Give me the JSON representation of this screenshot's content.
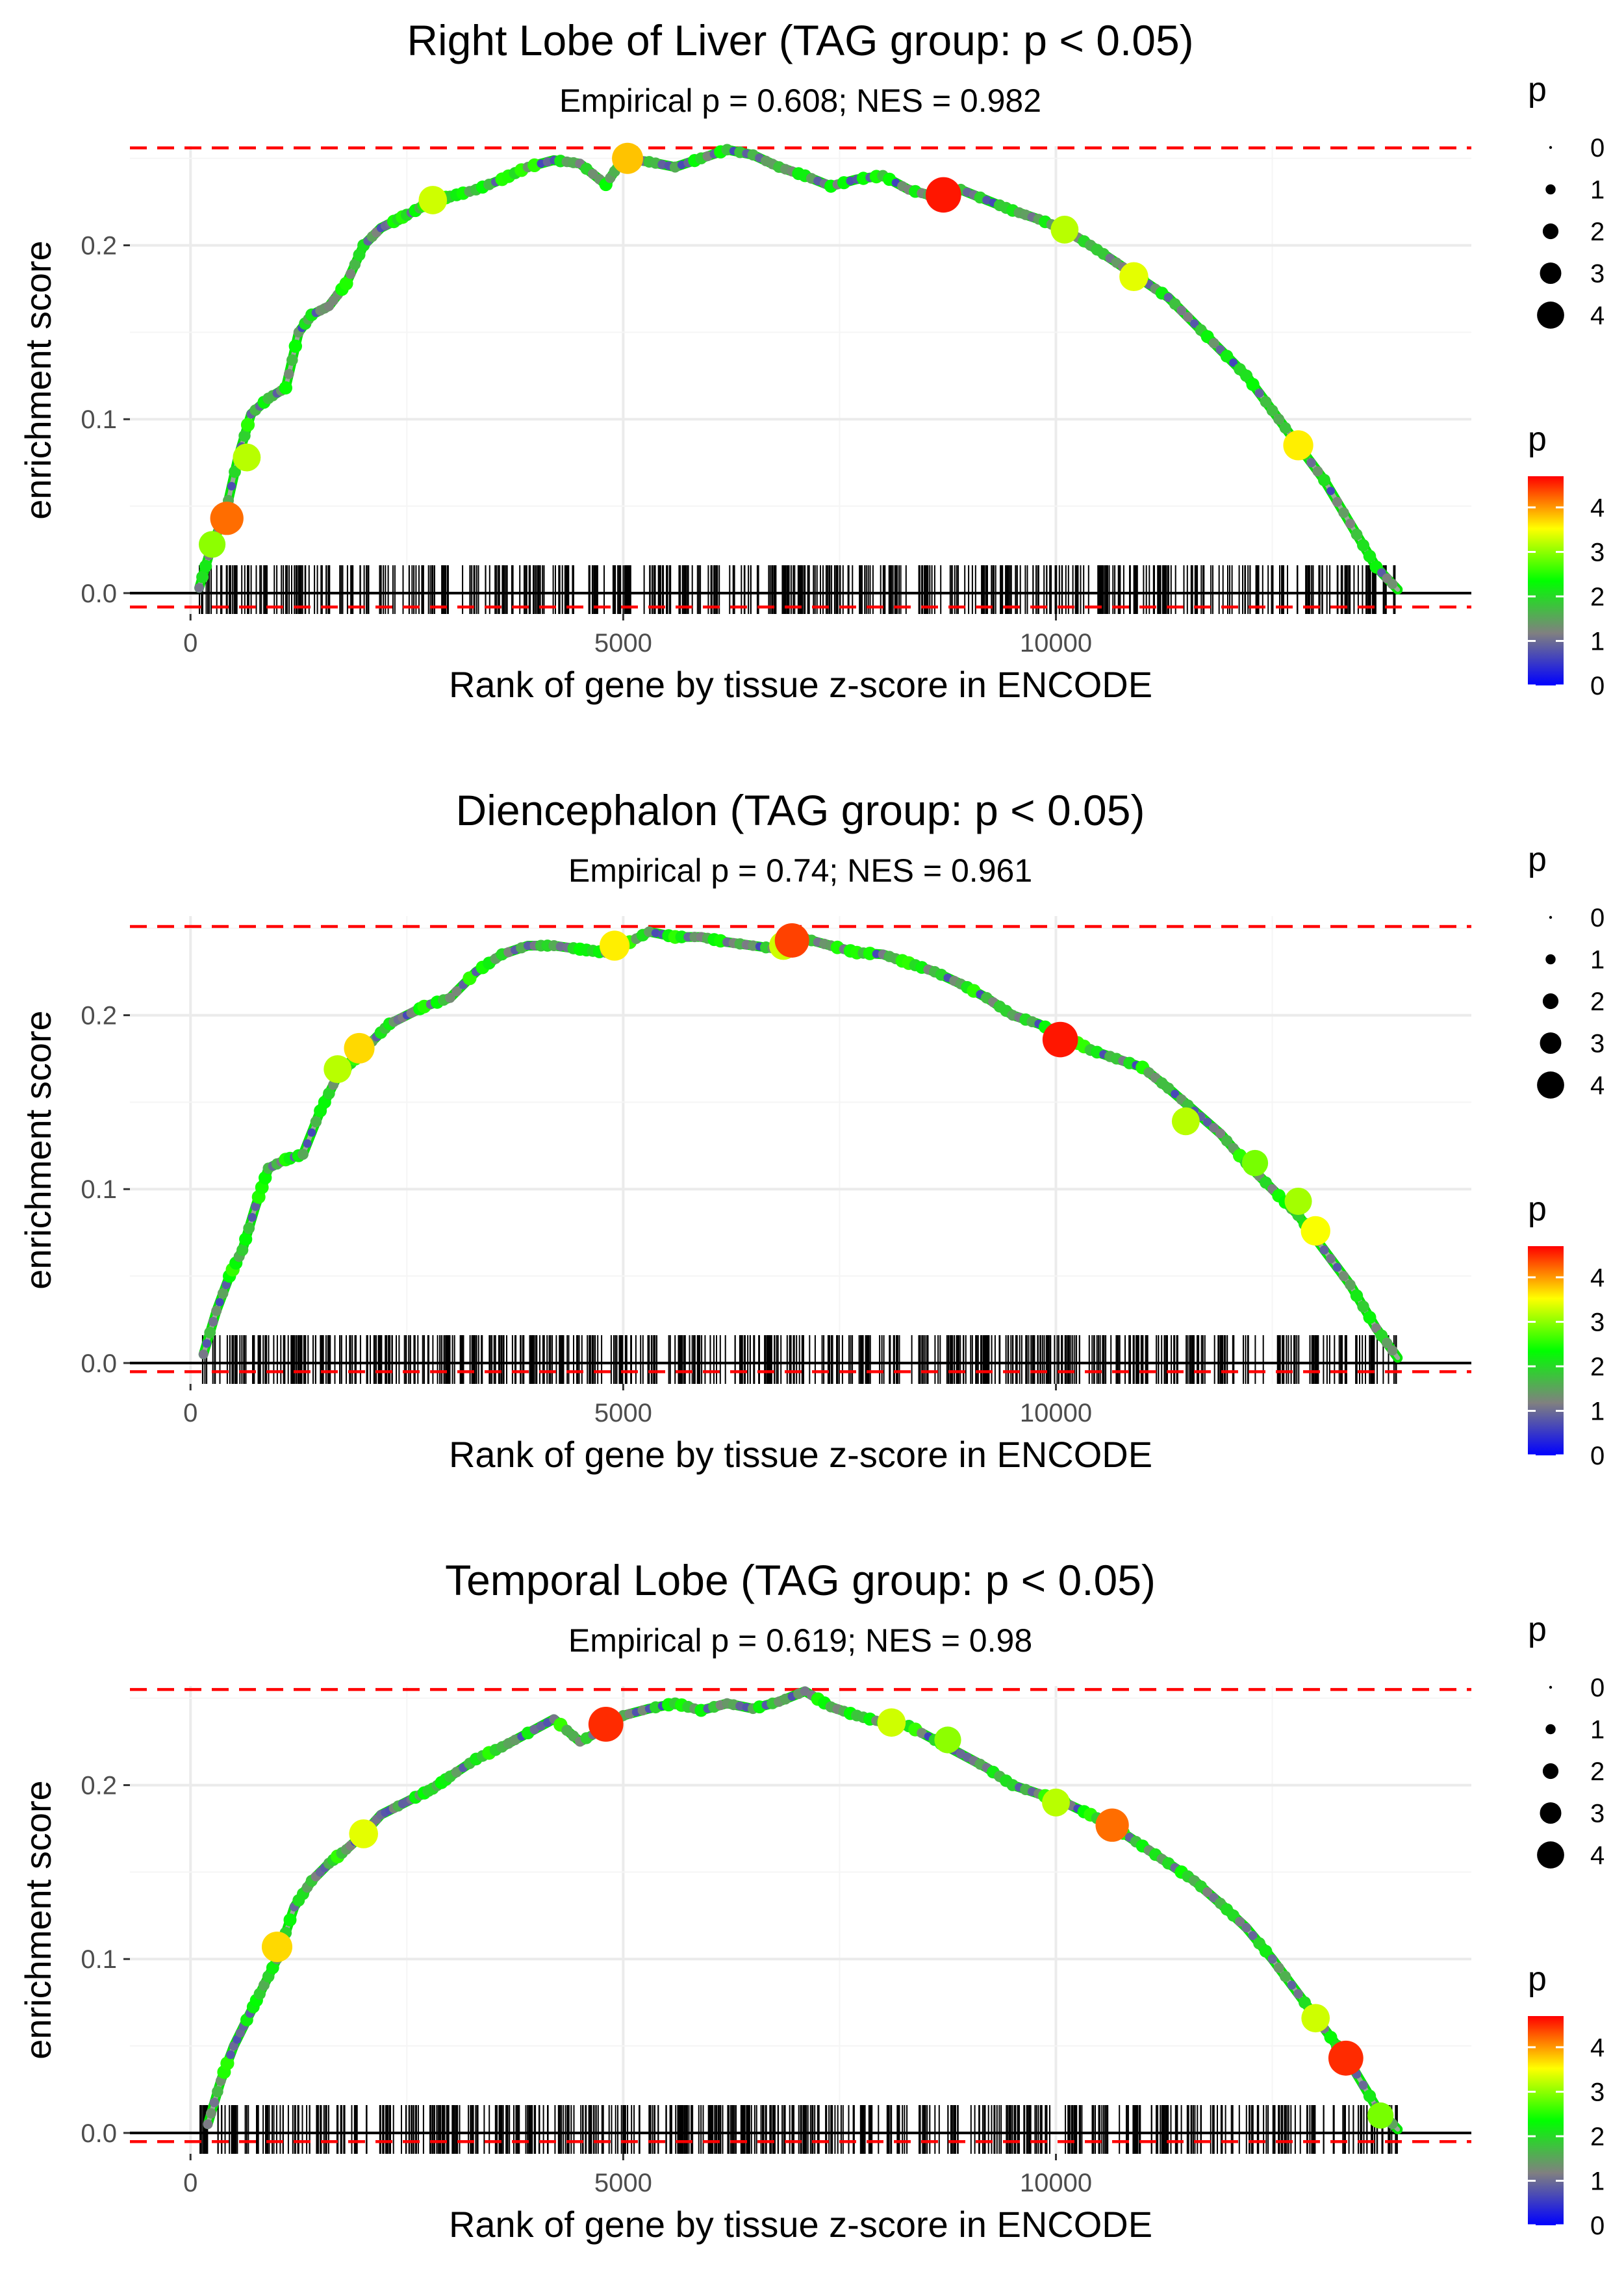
{
  "chart_data": [
    {
      "type": "line",
      "title": "Right Lobe of Liver (TAG group: p < 0.05)",
      "subtitle": "Empirical p = 0.608; NES = 0.982",
      "xlabel": "Rank of gene by tissue z-score in ENCODE",
      "ylabel": "enrichment score",
      "xlim": [
        -700,
        14800
      ],
      "ylim": [
        -0.012,
        0.257
      ],
      "xticks": [
        0,
        5000,
        10000
      ],
      "xtick_labels": [
        "0",
        "5000",
        "10000"
      ],
      "yticks": [
        0.0,
        0.1,
        0.2
      ],
      "ytick_labels": [
        "0.0",
        "0.1",
        "0.2"
      ],
      "max_es": 0.256,
      "min_es": -0.008,
      "series": [
        {
          "name": "running enrichment score",
          "x": [
            100,
            250,
            400,
            550,
            700,
            900,
            1100,
            1250,
            1400,
            1600,
            1800,
            2000,
            2200,
            2400,
            2600,
            2800,
            3000,
            3300,
            3600,
            3900,
            4200,
            4500,
            4800,
            5000,
            5300,
            5600,
            5900,
            6200,
            6500,
            6800,
            7100,
            7400,
            7700,
            8000,
            8300,
            8600,
            8900,
            9200,
            9500,
            9800,
            10100,
            10400,
            10700,
            11000,
            11300,
            11600,
            11900,
            12200,
            12500,
            12800,
            13100,
            13400,
            13700,
            13950
          ],
          "y": [
            0.003,
            0.028,
            0.045,
            0.078,
            0.103,
            0.112,
            0.118,
            0.15,
            0.16,
            0.165,
            0.178,
            0.2,
            0.21,
            0.215,
            0.22,
            0.226,
            0.228,
            0.232,
            0.238,
            0.245,
            0.249,
            0.247,
            0.235,
            0.25,
            0.248,
            0.245,
            0.25,
            0.255,
            0.252,
            0.245,
            0.24,
            0.234,
            0.238,
            0.24,
            0.232,
            0.228,
            0.232,
            0.226,
            0.22,
            0.215,
            0.209,
            0.2,
            0.19,
            0.18,
            0.17,
            0.155,
            0.14,
            0.125,
            0.105,
            0.085,
            0.065,
            0.04,
            0.015,
            0.002
          ]
        }
      ],
      "highlight_points": [
        {
          "x": 250,
          "y": 0.028,
          "p": 3.0
        },
        {
          "x": 420,
          "y": 0.043,
          "p": 4.2
        },
        {
          "x": 650,
          "y": 0.078,
          "p": 3.2
        },
        {
          "x": 2800,
          "y": 0.226,
          "p": 3.3
        },
        {
          "x": 5050,
          "y": 0.25,
          "p": 3.8
        },
        {
          "x": 8700,
          "y": 0.229,
          "p": 4.6
        },
        {
          "x": 10100,
          "y": 0.209,
          "p": 3.2
        },
        {
          "x": 10900,
          "y": 0.182,
          "p": 3.4
        },
        {
          "x": 12800,
          "y": 0.085,
          "p": 3.6
        }
      ],
      "rug_seed": 11,
      "rug_count": 620,
      "legend_size": {
        "title": "p",
        "values": [
          "0",
          "1",
          "2",
          "3",
          "4"
        ]
      },
      "legend_color": {
        "title": "p",
        "tick_labels": [
          "4",
          "3",
          "2",
          "1",
          "0"
        ]
      }
    },
    {
      "type": "line",
      "title": "Diencephalon (TAG group: p < 0.05)",
      "subtitle": "Empirical p = 0.74; NES = 0.961",
      "xlabel": "Rank of gene by tissue z-score in ENCODE",
      "ylabel": "enrichment score",
      "xlim": [
        -700,
        14800
      ],
      "ylim": [
        -0.012,
        0.257
      ],
      "xticks": [
        0,
        5000,
        10000
      ],
      "xtick_labels": [
        "0",
        "5000",
        "10000"
      ],
      "yticks": [
        0.0,
        0.1,
        0.2
      ],
      "ytick_labels": [
        "0.0",
        "0.1",
        "0.2"
      ],
      "max_es": 0.251,
      "min_es": -0.005,
      "series": [
        {
          "name": "running enrichment score",
          "x": [
            150,
            300,
            450,
            600,
            750,
            900,
            1100,
            1300,
            1500,
            1700,
            1900,
            2100,
            2300,
            2500,
            2700,
            3000,
            3300,
            3600,
            3900,
            4200,
            4500,
            4800,
            5000,
            5300,
            5600,
            5900,
            6200,
            6500,
            6800,
            7100,
            7400,
            7700,
            8000,
            8300,
            8600,
            8900,
            9200,
            9500,
            9800,
            10100,
            10400,
            10700,
            11000,
            11300,
            11600,
            11900,
            12200,
            12500,
            12800,
            13100,
            13400,
            13700,
            13950
          ],
          "y": [
            0.005,
            0.03,
            0.05,
            0.065,
            0.09,
            0.112,
            0.117,
            0.12,
            0.145,
            0.165,
            0.175,
            0.185,
            0.195,
            0.2,
            0.205,
            0.21,
            0.225,
            0.235,
            0.24,
            0.24,
            0.238,
            0.236,
            0.24,
            0.248,
            0.245,
            0.245,
            0.242,
            0.24,
            0.238,
            0.244,
            0.24,
            0.236,
            0.235,
            0.23,
            0.225,
            0.218,
            0.21,
            0.2,
            0.195,
            0.188,
            0.18,
            0.175,
            0.17,
            0.158,
            0.145,
            0.132,
            0.115,
            0.1,
            0.085,
            0.065,
            0.045,
            0.02,
            0.003
          ]
        }
      ],
      "highlight_points": [
        {
          "x": 1700,
          "y": 0.169,
          "p": 3.2
        },
        {
          "x": 1950,
          "y": 0.181,
          "p": 3.7
        },
        {
          "x": 4900,
          "y": 0.24,
          "p": 3.6
        },
        {
          "x": 6850,
          "y": 0.24,
          "p": 3.3
        },
        {
          "x": 6950,
          "y": 0.243,
          "p": 4.4
        },
        {
          "x": 10050,
          "y": 0.186,
          "p": 4.6
        },
        {
          "x": 11500,
          "y": 0.139,
          "p": 3.2
        },
        {
          "x": 12300,
          "y": 0.115,
          "p": 2.9
        },
        {
          "x": 12800,
          "y": 0.093,
          "p": 3.1
        },
        {
          "x": 13000,
          "y": 0.076,
          "p": 3.5
        }
      ],
      "rug_seed": 37,
      "rug_count": 640,
      "legend_size": {
        "title": "p",
        "values": [
          "0",
          "1",
          "2",
          "3",
          "4"
        ]
      },
      "legend_color": {
        "title": "p",
        "tick_labels": [
          "4",
          "3",
          "2",
          "1",
          "0"
        ]
      }
    },
    {
      "type": "line",
      "title": "Temporal Lobe (TAG group: p < 0.05)",
      "subtitle": "Empirical p = 0.619; NES = 0.98",
      "xlabel": "Rank of gene by tissue z-score in ENCODE",
      "ylabel": "enrichment score",
      "xlim": [
        -700,
        14800
      ],
      "ylim": [
        -0.012,
        0.257
      ],
      "xticks": [
        0,
        5000,
        10000
      ],
      "xtick_labels": [
        "0",
        "5000",
        "10000"
      ],
      "yticks": [
        0.0,
        0.1,
        0.2
      ],
      "ytick_labels": [
        "0.0",
        "0.1",
        "0.2"
      ],
      "max_es": 0.255,
      "min_es": -0.005,
      "series": [
        {
          "name": "running enrichment score",
          "x": [
            200,
            350,
            500,
            650,
            800,
            1000,
            1200,
            1400,
            1600,
            1800,
            2000,
            2200,
            2400,
            2600,
            2800,
            3000,
            3300,
            3600,
            3900,
            4200,
            4500,
            4800,
            5000,
            5300,
            5600,
            5900,
            6200,
            6500,
            6800,
            7100,
            7400,
            7700,
            8000,
            8300,
            8600,
            8900,
            9200,
            9500,
            9800,
            10100,
            10400,
            10700,
            11000,
            11300,
            11600,
            11900,
            12200,
            12500,
            12800,
            13100,
            13400,
            13700,
            13950
          ],
          "y": [
            0.005,
            0.03,
            0.05,
            0.065,
            0.08,
            0.1,
            0.13,
            0.145,
            0.155,
            0.163,
            0.172,
            0.183,
            0.188,
            0.193,
            0.198,
            0.205,
            0.215,
            0.222,
            0.23,
            0.238,
            0.225,
            0.233,
            0.24,
            0.244,
            0.247,
            0.243,
            0.247,
            0.244,
            0.248,
            0.254,
            0.245,
            0.24,
            0.236,
            0.234,
            0.226,
            0.218,
            0.21,
            0.2,
            0.195,
            0.19,
            0.183,
            0.175,
            0.165,
            0.155,
            0.145,
            0.132,
            0.118,
            0.1,
            0.08,
            0.06,
            0.04,
            0.015,
            0.002
          ]
        }
      ],
      "highlight_points": [
        {
          "x": 1000,
          "y": 0.107,
          "p": 3.7
        },
        {
          "x": 2000,
          "y": 0.172,
          "p": 3.4
        },
        {
          "x": 4800,
          "y": 0.235,
          "p": 4.5
        },
        {
          "x": 8100,
          "y": 0.236,
          "p": 3.3
        },
        {
          "x": 8750,
          "y": 0.226,
          "p": 3.0
        },
        {
          "x": 10000,
          "y": 0.19,
          "p": 3.2
        },
        {
          "x": 10650,
          "y": 0.177,
          "p": 4.2
        },
        {
          "x": 13000,
          "y": 0.066,
          "p": 3.3
        },
        {
          "x": 13350,
          "y": 0.043,
          "p": 4.5
        },
        {
          "x": 13750,
          "y": 0.01,
          "p": 2.9
        }
      ],
      "rug_seed": 73,
      "rug_count": 630,
      "legend_size": {
        "title": "p",
        "values": [
          "0",
          "1",
          "2",
          "3",
          "4"
        ]
      },
      "legend_color": {
        "title": "p",
        "tick_labels": [
          "4",
          "3",
          "2",
          "1",
          "0"
        ]
      }
    }
  ],
  "colors": {
    "gradient": [
      "#0000ff",
      "#808080",
      "#00ff00",
      "#ffff00",
      "#ff0000"
    ],
    "reference_line": "#ff0000",
    "grid": "#ebebeb",
    "rug": "#000000"
  }
}
